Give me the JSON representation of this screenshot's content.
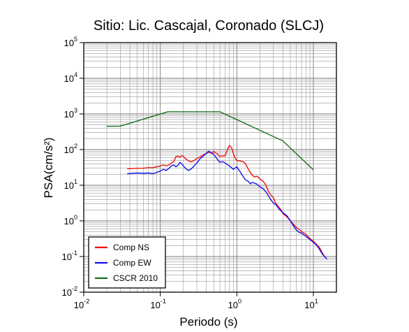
{
  "chart_data": {
    "type": "line",
    "title": "Sitio: Lic. Cascajal, Coronado (SLCJ)",
    "xlabel": "Periodo (s)",
    "ylabel": "PSA(cm/s²)",
    "x_scale": "log",
    "y_scale": "log",
    "xlim": [
      0.01,
      20
    ],
    "ylim": [
      0.01,
      100000
    ],
    "grid": true,
    "legend_position": "bottom-left",
    "x_ticks": [
      {
        "base": "10",
        "exp": "-2",
        "value": 0.01
      },
      {
        "base": "10",
        "exp": "-1",
        "value": 0.1
      },
      {
        "base": "10",
        "exp": "0",
        "value": 1
      },
      {
        "base": "10",
        "exp": "1",
        "value": 10
      }
    ],
    "y_ticks": [
      {
        "base": "10",
        "exp": "-2",
        "value": 0.01
      },
      {
        "base": "10",
        "exp": "-1",
        "value": 0.1
      },
      {
        "base": "10",
        "exp": "0",
        "value": 1
      },
      {
        "base": "10",
        "exp": "1",
        "value": 10
      },
      {
        "base": "10",
        "exp": "2",
        "value": 100
      },
      {
        "base": "10",
        "exp": "3",
        "value": 1000
      },
      {
        "base": "10",
        "exp": "4",
        "value": 10000
      },
      {
        "base": "10",
        "exp": "5",
        "value": 100000
      }
    ],
    "series": [
      {
        "name": "Comp NS",
        "color": "#ee1111",
        "points": [
          [
            0.037,
            29
          ],
          [
            0.05,
            30
          ],
          [
            0.06,
            30
          ],
          [
            0.07,
            31
          ],
          [
            0.08,
            31
          ],
          [
            0.09,
            33
          ],
          [
            0.1,
            35
          ],
          [
            0.11,
            37
          ],
          [
            0.12,
            35
          ],
          [
            0.13,
            37
          ],
          [
            0.14,
            42
          ],
          [
            0.15,
            46
          ],
          [
            0.16,
            63
          ],
          [
            0.17,
            66
          ],
          [
            0.18,
            60
          ],
          [
            0.19,
            68
          ],
          [
            0.2,
            65
          ],
          [
            0.21,
            57
          ],
          [
            0.23,
            50
          ],
          [
            0.25,
            45
          ],
          [
            0.27,
            48
          ],
          [
            0.3,
            56
          ],
          [
            0.33,
            62
          ],
          [
            0.36,
            71
          ],
          [
            0.4,
            77
          ],
          [
            0.43,
            86
          ],
          [
            0.46,
            79
          ],
          [
            0.5,
            88
          ],
          [
            0.55,
            77
          ],
          [
            0.6,
            64
          ],
          [
            0.65,
            67
          ],
          [
            0.7,
            66
          ],
          [
            0.75,
            95
          ],
          [
            0.8,
            130
          ],
          [
            0.85,
            115
          ],
          [
            0.9,
            78
          ],
          [
            0.95,
            58
          ],
          [
            1.0,
            49
          ],
          [
            1.1,
            48
          ],
          [
            1.2,
            46
          ],
          [
            1.3,
            40
          ],
          [
            1.4,
            29
          ],
          [
            1.5,
            23
          ],
          [
            1.6,
            19
          ],
          [
            1.7,
            17
          ],
          [
            1.8,
            18
          ],
          [
            1.9,
            17
          ],
          [
            2.0,
            15
          ],
          [
            2.2,
            13
          ],
          [
            2.4,
            10
          ],
          [
            2.6,
            6.5
          ],
          [
            2.8,
            5.2
          ],
          [
            3.0,
            4.5
          ],
          [
            3.2,
            3.2
          ],
          [
            3.5,
            2.5
          ],
          [
            3.8,
            2.0
          ],
          [
            4.0,
            1.6
          ],
          [
            4.5,
            1.3
          ],
          [
            5.0,
            1.0
          ],
          [
            5.5,
            0.8
          ],
          [
            6.0,
            0.65
          ],
          [
            6.5,
            0.58
          ],
          [
            7.0,
            0.5
          ],
          [
            8.0,
            0.42
          ],
          [
            9.0,
            0.32
          ],
          [
            10,
            0.27
          ],
          [
            11,
            0.22
          ],
          [
            12,
            0.18
          ],
          [
            13,
            0.13
          ],
          [
            14,
            0.1
          ],
          [
            15,
            0.085
          ]
        ]
      },
      {
        "name": "Comp EW",
        "color": "#1111ee",
        "points": [
          [
            0.037,
            21
          ],
          [
            0.05,
            22
          ],
          [
            0.06,
            21.5
          ],
          [
            0.07,
            22
          ],
          [
            0.08,
            21
          ],
          [
            0.09,
            23
          ],
          [
            0.1,
            25
          ],
          [
            0.11,
            28
          ],
          [
            0.12,
            26
          ],
          [
            0.13,
            30
          ],
          [
            0.14,
            35
          ],
          [
            0.15,
            37
          ],
          [
            0.16,
            33
          ],
          [
            0.17,
            36
          ],
          [
            0.18,
            44
          ],
          [
            0.19,
            40
          ],
          [
            0.2,
            35
          ],
          [
            0.21,
            31
          ],
          [
            0.23,
            26
          ],
          [
            0.25,
            28
          ],
          [
            0.27,
            33
          ],
          [
            0.3,
            42
          ],
          [
            0.33,
            55
          ],
          [
            0.36,
            64
          ],
          [
            0.4,
            80
          ],
          [
            0.43,
            90
          ],
          [
            0.46,
            82
          ],
          [
            0.5,
            73
          ],
          [
            0.55,
            55
          ],
          [
            0.6,
            44
          ],
          [
            0.65,
            46
          ],
          [
            0.7,
            42
          ],
          [
            0.8,
            35
          ],
          [
            0.9,
            28
          ],
          [
            1.0,
            33
          ],
          [
            1.1,
            24
          ],
          [
            1.2,
            18
          ],
          [
            1.3,
            14
          ],
          [
            1.4,
            13
          ],
          [
            1.5,
            11
          ],
          [
            1.6,
            12
          ],
          [
            1.8,
            11
          ],
          [
            2.0,
            9
          ],
          [
            2.2,
            8
          ],
          [
            2.4,
            6.5
          ],
          [
            2.6,
            5.0
          ],
          [
            2.8,
            3.8
          ],
          [
            3.0,
            3.2
          ],
          [
            3.3,
            2.7
          ],
          [
            3.6,
            2.1
          ],
          [
            4.0,
            1.7
          ],
          [
            4.5,
            1.4
          ],
          [
            5.0,
            1.0
          ],
          [
            5.5,
            0.72
          ],
          [
            6.0,
            0.55
          ],
          [
            6.5,
            0.48
          ],
          [
            7.0,
            0.45
          ],
          [
            8.0,
            0.37
          ],
          [
            9.0,
            0.3
          ],
          [
            10,
            0.25
          ],
          [
            11,
            0.21
          ],
          [
            12,
            0.16
          ],
          [
            13,
            0.12
          ],
          [
            14,
            0.1
          ],
          [
            15,
            0.085
          ]
        ]
      },
      {
        "name": "CSCR 2010",
        "color": "#1a6e1a",
        "points": [
          [
            0.02,
            450
          ],
          [
            0.03,
            455
          ],
          [
            0.125,
            1150
          ],
          [
            0.6,
            1150
          ],
          [
            4.0,
            175
          ],
          [
            10,
            27
          ]
        ]
      }
    ]
  }
}
